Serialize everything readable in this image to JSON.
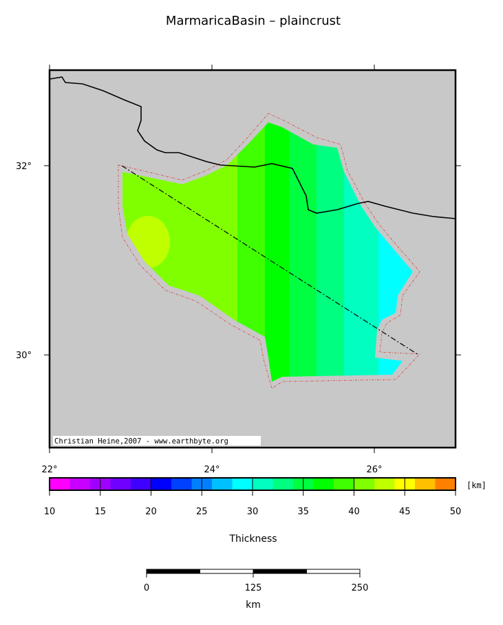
{
  "title": "MarmaricaBasin – plaincrust",
  "map": {
    "lon_lim": [
      22,
      27
    ],
    "lat_lim": [
      29.02,
      33.01
    ],
    "lon_ticks": [
      {
        "value": 22,
        "label": "22°"
      },
      {
        "value": 24,
        "label": "24°"
      },
      {
        "value": 26,
        "label": "26°"
      }
    ],
    "lat_ticks": [
      {
        "value": 32,
        "label": "32°"
      },
      {
        "value": 30,
        "label": "30°"
      }
    ],
    "credit": "Christian Heine,2007 - www.earthbyte.org"
  },
  "colorbar": {
    "label": "Thickness",
    "unit": "[km]",
    "ticks": [
      10,
      15,
      20,
      25,
      30,
      35,
      40,
      45,
      50
    ],
    "bounds": [
      10,
      12,
      14,
      16,
      18,
      20,
      22,
      24,
      26,
      28,
      30,
      32,
      34,
      36,
      38,
      40,
      42,
      44,
      46,
      48,
      50
    ],
    "colors": [
      "#ff00ff",
      "#c800ff",
      "#a000ff",
      "#7000ff",
      "#4000ff",
      "#0000ff",
      "#0040ff",
      "#0080ff",
      "#00c0ff",
      "#00ffff",
      "#00ffc0",
      "#00ff80",
      "#00ff40",
      "#00ff00",
      "#40ff00",
      "#80ff00",
      "#c0ff00",
      "#ffff00",
      "#ffc000",
      "#ff8000"
    ]
  },
  "scalebar": {
    "ticks": [
      0,
      125,
      250
    ],
    "unit": "km"
  }
}
